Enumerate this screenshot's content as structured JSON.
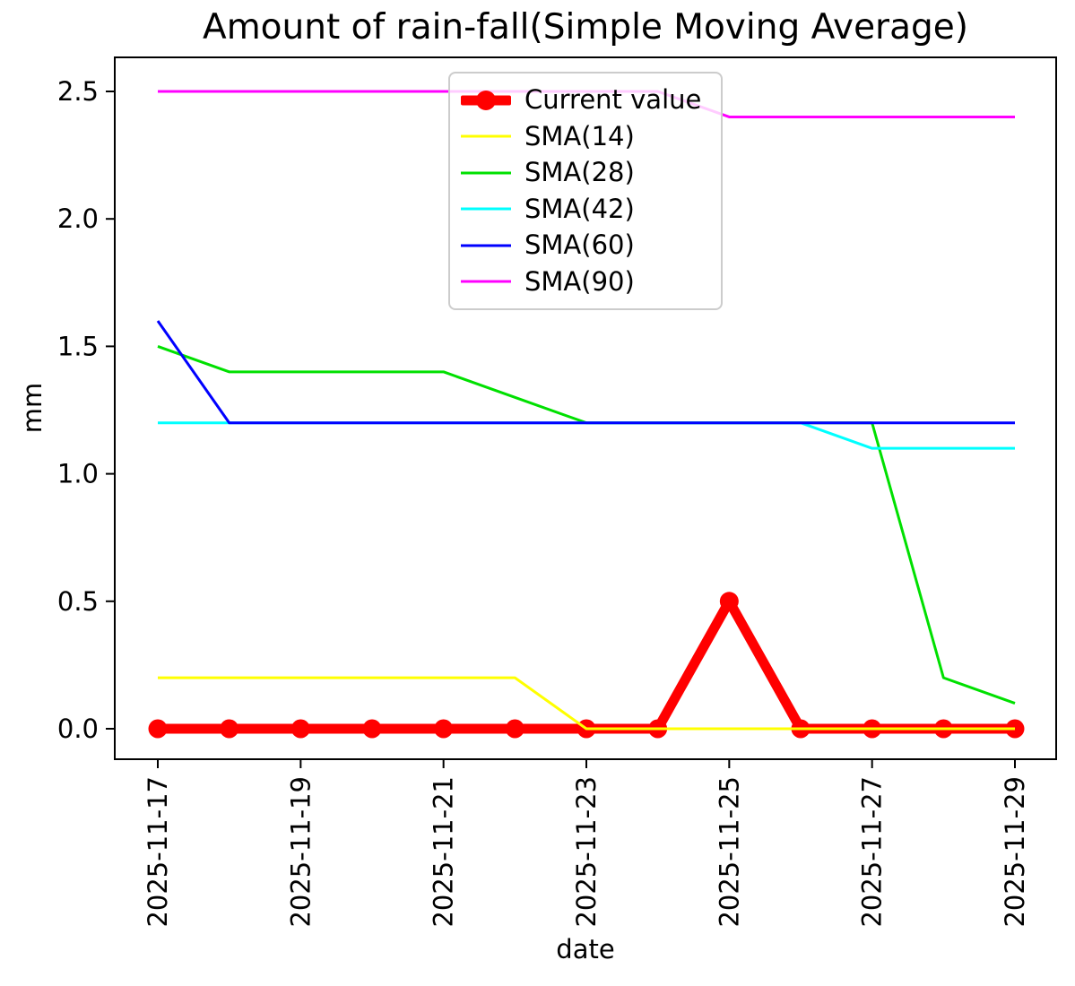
{
  "chart_data": {
    "type": "line",
    "title": "Amount of rain-fall(Simple Moving Average)",
    "xlabel": "date",
    "ylabel": "mm",
    "x": [
      "2025-11-17",
      "2025-11-18",
      "2025-11-19",
      "2025-11-20",
      "2025-11-21",
      "2025-11-22",
      "2025-11-23",
      "2025-11-24",
      "2025-11-25",
      "2025-11-26",
      "2025-11-27",
      "2025-11-28",
      "2025-11-29"
    ],
    "xtick_labels": [
      "2025-11-17",
      "2025-11-19",
      "2025-11-21",
      "2025-11-23",
      "2025-11-25",
      "2025-11-27",
      "2025-11-29"
    ],
    "ytick_labels": [
      "0.0",
      "0.5",
      "1.0",
      "1.5",
      "2.0",
      "2.5"
    ],
    "ytick_values": [
      0,
      0.5,
      1.0,
      1.5,
      2.0,
      2.5
    ],
    "ylim": [
      -0.12,
      2.63
    ],
    "grid": false,
    "legend_position": "upper center",
    "legend_entries": [
      "Current value",
      "SMA(14)",
      "SMA(28)",
      "SMA(42)",
      "SMA(60)",
      "SMA(90)"
    ],
    "series": [
      {
        "name": "Current value",
        "color": "#ff0000",
        "linewidth": 11,
        "marker": "circle",
        "marker_size": 10.5,
        "values": [
          0,
          0,
          0,
          0,
          0,
          0,
          0,
          0,
          0.5,
          0,
          0,
          0,
          0
        ]
      },
      {
        "name": "SMA(14)",
        "color": "#ffff00",
        "linewidth": 3,
        "marker": null,
        "marker_size": 0,
        "values": [
          0.2,
          0.2,
          0.2,
          0.2,
          0.2,
          0.2,
          0,
          0,
          0,
          0,
          0,
          0,
          0
        ]
      },
      {
        "name": "SMA(28)",
        "color": "#00e000",
        "linewidth": 3,
        "marker": null,
        "marker_size": 0,
        "values": [
          1.5,
          1.4,
          1.4,
          1.4,
          1.4,
          1.3,
          1.2,
          1.2,
          1.2,
          1.2,
          1.2,
          0.2,
          0.1
        ]
      },
      {
        "name": "SMA(42)",
        "color": "#00ffff",
        "linewidth": 3,
        "marker": null,
        "marker_size": 0,
        "values": [
          1.2,
          1.2,
          1.2,
          1.2,
          1.2,
          1.2,
          1.2,
          1.2,
          1.2,
          1.2,
          1.1,
          1.1,
          1.1
        ]
      },
      {
        "name": "SMA(60)",
        "color": "#0000ff",
        "linewidth": 3,
        "marker": null,
        "marker_size": 0,
        "values": [
          1.6,
          1.2,
          1.2,
          1.2,
          1.2,
          1.2,
          1.2,
          1.2,
          1.2,
          1.2,
          1.2,
          1.2,
          1.2
        ]
      },
      {
        "name": "SMA(90)",
        "color": "#ff00ff",
        "linewidth": 3,
        "marker": null,
        "marker_size": 0,
        "values": [
          2.5,
          2.5,
          2.5,
          2.5,
          2.5,
          2.5,
          2.5,
          2.5,
          2.4,
          2.4,
          2.4,
          2.4,
          2.4
        ]
      }
    ]
  }
}
